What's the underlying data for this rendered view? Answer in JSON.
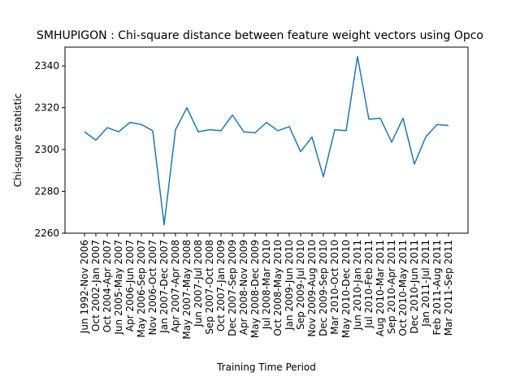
{
  "chart_data": {
    "type": "line",
    "title": "SMHUPIGON : Chi-square distance between feature weight vectors using Opco",
    "xlabel": "Training Time Period",
    "ylabel": "Chi-square statistic",
    "ylim": [
      2260,
      2349
    ],
    "yticks": [
      2260,
      2280,
      2300,
      2320,
      2340
    ],
    "grid": false,
    "line_color": "#1f77b4",
    "categories": [
      "Jun 1992-Nov 2006",
      "Oct 2002-Jan 2007",
      "Oct 2004-Apr 2007",
      "Jun 2005-May 2007",
      "Apr 2006-Jun 2007",
      "May 2006-Sep 2007",
      "Nov 2006-Oct 2007",
      "Jan 2007-Dec 2007",
      "Apr 2007-Apr 2008",
      "May 2007-May 2008",
      "Jun 2007-Jul 2008",
      "Sep 2007-Oct 2008",
      "Oct 2007-Jan 2009",
      "Dec 2007-Sep 2009",
      "Apr 2008-Nov 2009",
      "May 2008-Dec 2009",
      "Jul 2008-Mar 2010",
      "Oct 2008-May 2010",
      "Jan 2009-Jun 2010",
      "Sep 2009-Jul 2010",
      "Nov 2009-Aug 2010",
      "Dec 2009-Sep 2010",
      "Mar 2010-Oct 2010",
      "May 2010-Dec 2010",
      "Jun 2010-Jan 2011",
      "Jul 2010-Feb 2011",
      "Aug 2010-Mar 2011",
      "Sep 2010-Apr 2011",
      "Oct 2010-May 2011",
      "Dec 2010-Jun 2011",
      "Jan 2011-Jul 2011",
      "Feb 2011-Aug 2011",
      "Mar 2011-Sep 2011"
    ],
    "values": [
      2308.5,
      2304.5,
      2310.5,
      2308.5,
      2313,
      2312,
      2309,
      2264,
      2309.5,
      2320,
      2308.5,
      2309.5,
      2309,
      2316.5,
      2308.5,
      2308,
      2313,
      2309,
      2311,
      2299,
      2306,
      2287,
      2309.5,
      2309,
      2344.5,
      2314.5,
      2315,
      2303.5,
      2315,
      2293,
      2306,
      2312,
      2311.5
    ]
  }
}
